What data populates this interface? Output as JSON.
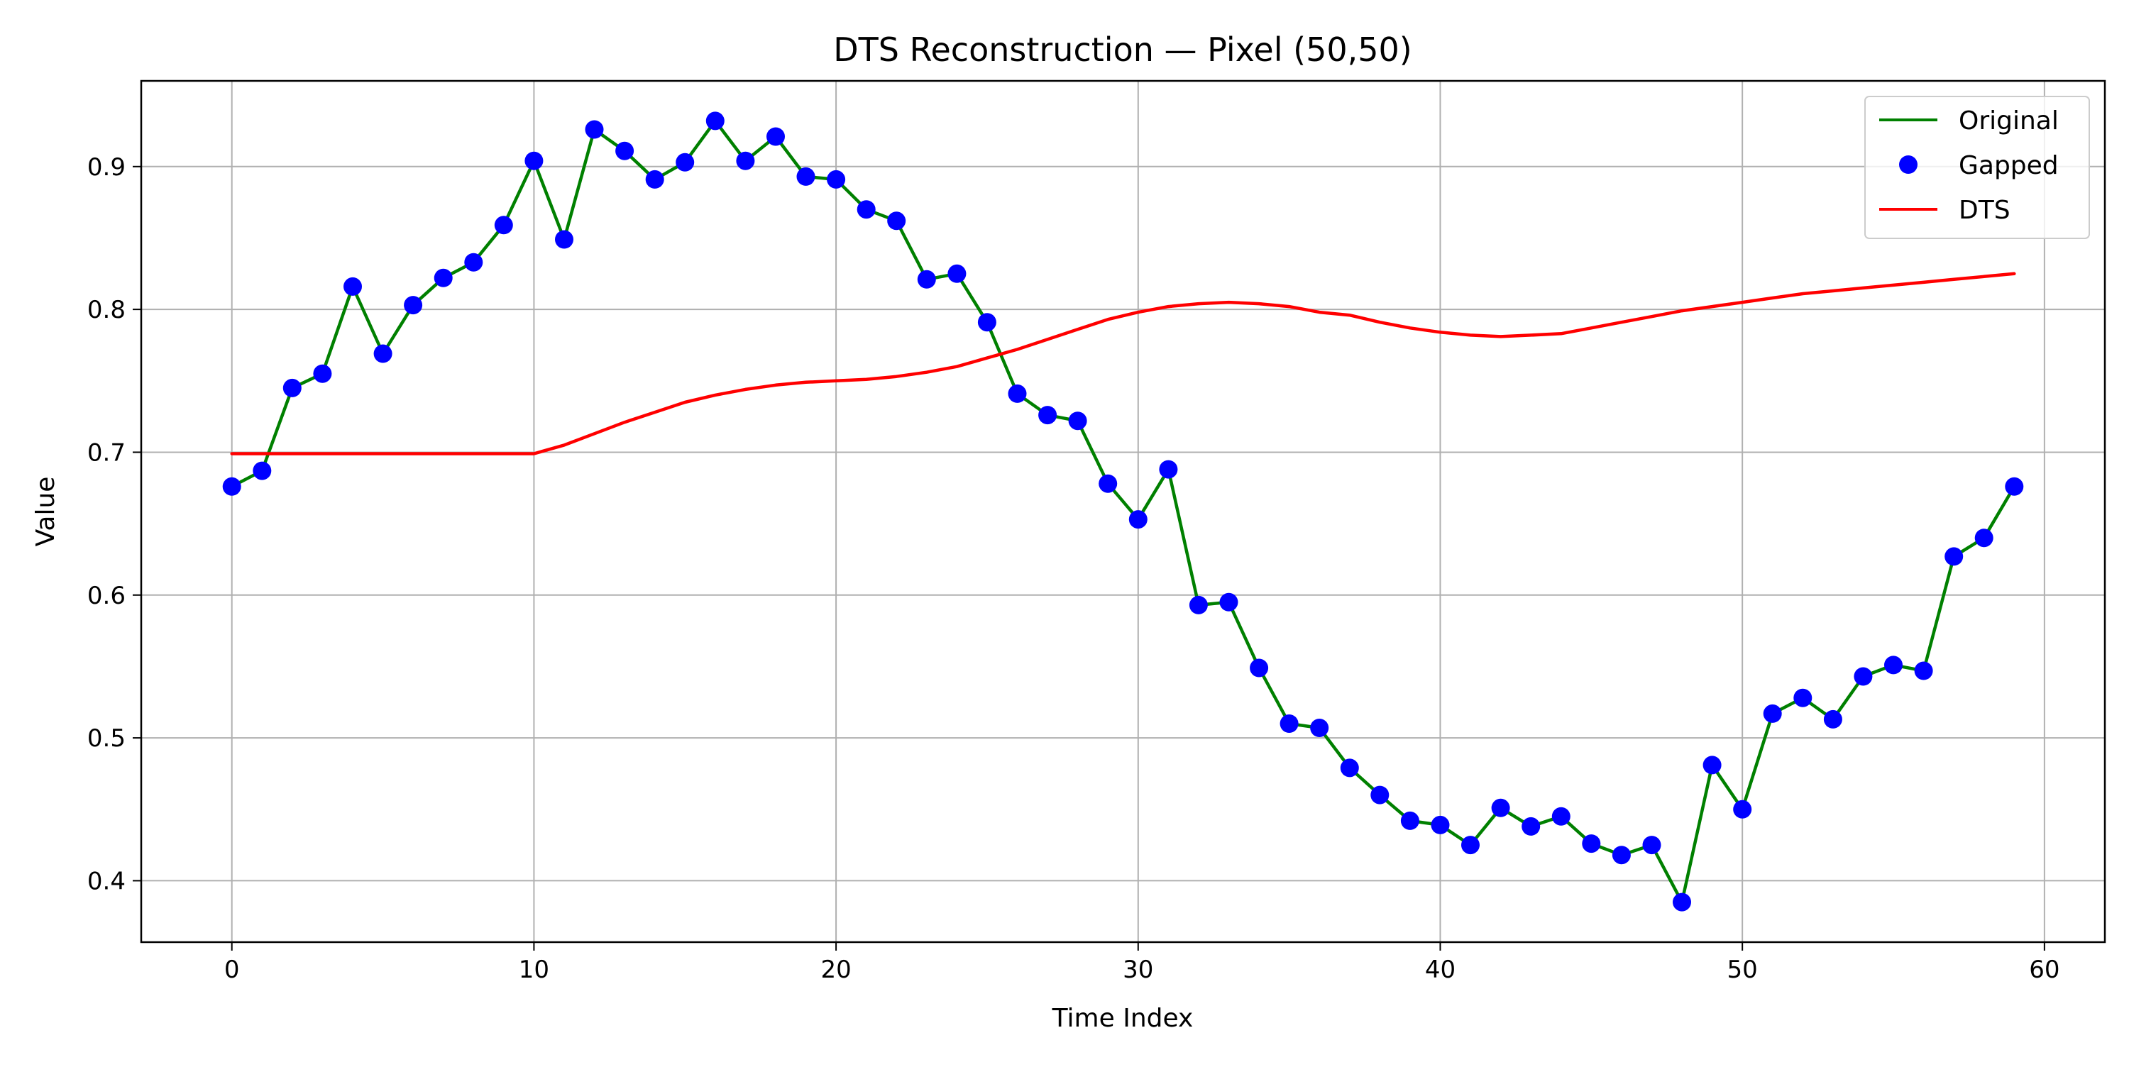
{
  "chart_data": {
    "type": "line",
    "title": "DTS Reconstruction — Pixel (50,50)",
    "xlabel": "Time Index",
    "ylabel": "Value",
    "xlim": [
      -3,
      62
    ],
    "ylim": [
      0.357,
      0.96
    ],
    "xticks": [
      0,
      10,
      20,
      30,
      40,
      50,
      60
    ],
    "yticks": [
      0.4,
      0.5,
      0.6,
      0.7,
      0.8,
      0.9
    ],
    "xtick_labels": [
      "0",
      "10",
      "20",
      "30",
      "40",
      "50",
      "60"
    ],
    "ytick_labels": [
      "0.4",
      "0.5",
      "0.6",
      "0.7",
      "0.8",
      "0.9"
    ],
    "grid": true,
    "legend_position": "top-right",
    "x": [
      0,
      1,
      2,
      3,
      4,
      5,
      6,
      7,
      8,
      9,
      10,
      11,
      12,
      13,
      14,
      15,
      16,
      17,
      18,
      19,
      20,
      21,
      22,
      23,
      24,
      25,
      26,
      27,
      28,
      29,
      30,
      31,
      32,
      33,
      34,
      35,
      36,
      37,
      38,
      39,
      40,
      41,
      42,
      43,
      44,
      45,
      46,
      47,
      48,
      49,
      50,
      51,
      52,
      53,
      54,
      55,
      56,
      57,
      58,
      59
    ],
    "series": [
      {
        "name": "Original",
        "style": "line",
        "color": "#008000",
        "values": [
          0.676,
          0.687,
          0.745,
          0.755,
          0.816,
          0.769,
          0.803,
          0.822,
          0.833,
          0.859,
          0.904,
          0.849,
          0.926,
          0.911,
          0.891,
          0.903,
          0.932,
          0.904,
          0.921,
          0.893,
          0.891,
          0.87,
          0.862,
          0.821,
          0.825,
          0.791,
          0.741,
          0.726,
          0.722,
          0.678,
          0.653,
          0.688,
          0.593,
          0.595,
          0.549,
          0.51,
          0.507,
          0.479,
          0.46,
          0.442,
          0.439,
          0.425,
          0.451,
          0.438,
          0.445,
          0.426,
          0.418,
          0.425,
          0.385,
          0.481,
          0.45,
          0.517,
          0.528,
          0.513,
          0.543,
          0.551,
          0.547,
          0.627,
          0.64,
          0.676
        ]
      },
      {
        "name": "Gapped",
        "style": "markers",
        "color": "#0000ff",
        "values": [
          0.676,
          0.687,
          0.745,
          0.755,
          0.816,
          0.769,
          0.803,
          0.822,
          0.833,
          0.859,
          0.904,
          0.849,
          0.926,
          0.911,
          0.891,
          0.903,
          0.932,
          0.904,
          0.921,
          0.893,
          0.891,
          0.87,
          0.862,
          0.821,
          0.825,
          0.791,
          0.741,
          0.726,
          0.722,
          0.678,
          0.653,
          0.688,
          0.593,
          0.595,
          0.549,
          0.51,
          0.507,
          0.479,
          0.46,
          0.442,
          0.439,
          0.425,
          0.451,
          0.438,
          0.445,
          0.426,
          0.418,
          0.425,
          0.385,
          0.481,
          0.45,
          0.517,
          0.528,
          0.513,
          0.543,
          0.551,
          0.547,
          0.627,
          0.64,
          0.676
        ]
      },
      {
        "name": "DTS",
        "style": "line",
        "color": "#ff0000",
        "values": [
          0.699,
          0.699,
          0.699,
          0.699,
          0.699,
          0.699,
          0.699,
          0.699,
          0.699,
          0.699,
          0.699,
          0.705,
          0.713,
          0.721,
          0.728,
          0.735,
          0.74,
          0.744,
          0.747,
          0.749,
          0.75,
          0.751,
          0.753,
          0.756,
          0.76,
          0.766,
          0.772,
          0.779,
          0.786,
          0.793,
          0.798,
          0.802,
          0.804,
          0.805,
          0.804,
          0.802,
          0.798,
          0.796,
          0.791,
          0.787,
          0.784,
          0.782,
          0.781,
          0.782,
          0.783,
          0.787,
          0.791,
          0.795,
          0.799,
          0.802,
          0.805,
          0.808,
          0.811,
          0.813,
          0.815,
          0.817,
          0.819,
          0.821,
          0.823,
          0.825
        ]
      }
    ]
  }
}
